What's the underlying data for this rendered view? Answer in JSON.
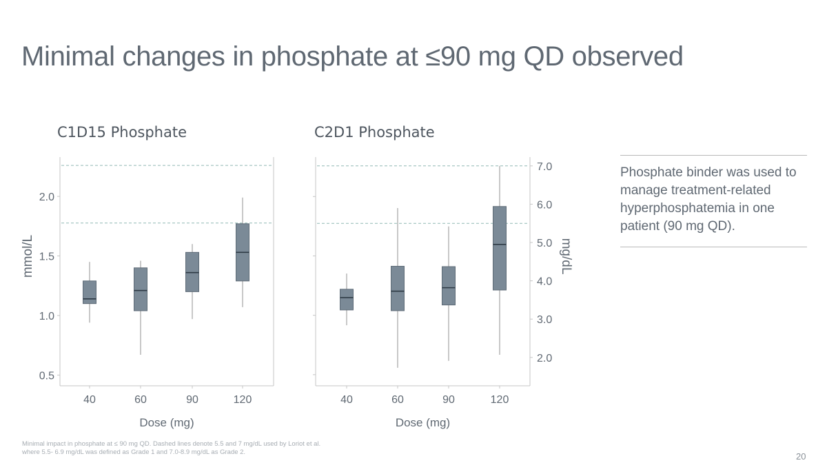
{
  "slide": {
    "title": "Minimal changes in phosphate at ≤90 mg QD observed",
    "note": "Phosphate binder was used to manage treatment-related hyperphosphatemia in one patient (90 mg QD).",
    "footnote_line1": "Minimal impact in phosphate at ≤ 90 mg QD. Dashed lines denote 5.5 and 7 mg/dL used by Loriot et al.",
    "footnote_line2": "where 5.5- 6.9 mg/dL was defined as Grade 1 and 7.0-8.9 mg/dL as Grade 2.",
    "page_number": "20"
  },
  "colors": {
    "box_fill": "#7b8a97",
    "box_stroke": "#5d6a76",
    "median": "#2e3a45",
    "whisker": "#ababab",
    "reference_line": "#8fb8b4",
    "axis": "#c4c4c4"
  },
  "chart_data": [
    {
      "type": "boxplot",
      "title": "C1D15 Phosphate",
      "xlabel": "Dose (mg)",
      "ylabel": "mmol/L",
      "categories": [
        "40",
        "60",
        "90",
        "120"
      ],
      "yticks": [
        "0.5",
        "1.0",
        "1.5",
        "2.0"
      ],
      "ylim": [
        0.41,
        2.33
      ],
      "reference_lines": [
        1.776,
        2.26
      ],
      "boxes": [
        {
          "min": 0.94,
          "q1": 1.1,
          "median": 1.14,
          "q3": 1.29,
          "max": 1.45
        },
        {
          "min": 0.67,
          "q1": 1.04,
          "median": 1.21,
          "q3": 1.4,
          "max": 1.46
        },
        {
          "min": 0.97,
          "q1": 1.2,
          "median": 1.36,
          "q3": 1.53,
          "max": 1.6
        },
        {
          "min": 1.07,
          "q1": 1.29,
          "median": 1.53,
          "q3": 1.77,
          "max": 1.99
        }
      ],
      "grid": false
    },
    {
      "type": "boxplot",
      "title": "C2D1 Phosphate",
      "xlabel": "Dose (mg)",
      "ylabel": "mg/dL",
      "categories": [
        "40",
        "60",
        "90",
        "120"
      ],
      "yticks": [
        "2.0",
        "3.0",
        "4.0",
        "5.0",
        "6.0",
        "7.0"
      ],
      "ylim": [
        1.26,
        7.23
      ],
      "reference_lines": [
        5.5,
        7.0
      ],
      "boxes": [
        {
          "min": 2.84,
          "q1": 3.24,
          "median": 3.56,
          "q3": 3.78,
          "max": 4.19
        },
        {
          "min": 1.73,
          "q1": 3.22,
          "median": 3.73,
          "q3": 4.38,
          "max": 5.9
        },
        {
          "min": 1.91,
          "q1": 3.37,
          "median": 3.82,
          "q3": 4.37,
          "max": 5.42
        },
        {
          "min": 2.07,
          "q1": 3.76,
          "median": 4.95,
          "q3": 5.94,
          "max": 7.0
        }
      ],
      "grid": false
    }
  ]
}
